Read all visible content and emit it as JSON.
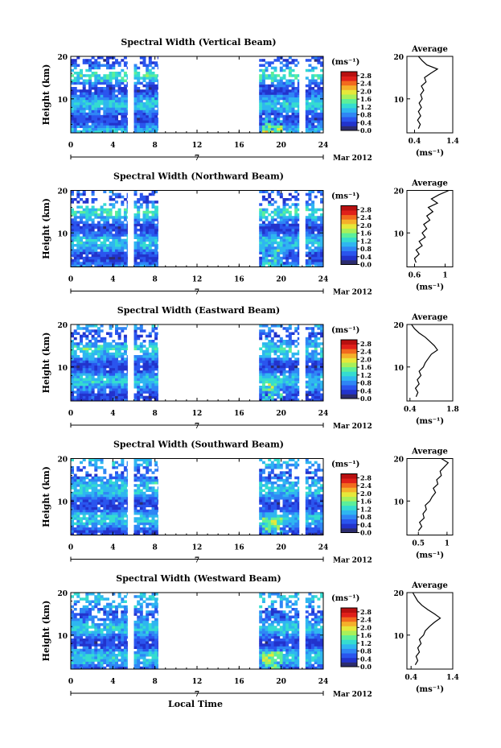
{
  "figure": {
    "x_axis_label": "Local Time",
    "date_label": "Mar 2012",
    "day_marker": "7",
    "unit_label": "(ms⁻¹)",
    "average_title": "Average"
  },
  "chart_data": [
    {
      "type": "heatmap",
      "title": "Spectral Width (Vertical Beam)",
      "xlabel": "",
      "ylabel": "Height (km)",
      "xlim": [
        0,
        24
      ],
      "ylim": [
        2,
        20
      ],
      "xticks": [
        0,
        4,
        8,
        12,
        16,
        20,
        24
      ],
      "yticks": [
        10,
        20
      ],
      "colorbar": {
        "ticks": [
          0.0,
          0.4,
          0.8,
          1.2,
          1.6,
          2.0,
          2.4,
          2.8
        ],
        "range": [
          0,
          3.0
        ]
      },
      "data_intervals_hours": [
        [
          0,
          5.4
        ],
        [
          6.0,
          8.3
        ],
        [
          17.9,
          21.7
        ],
        [
          22.3,
          24
        ]
      ],
      "average_profile": {
        "xlim": [
          0.2,
          1.4
        ],
        "xticks": [
          0.4,
          1.4
        ],
        "yticks": [
          10,
          20
        ],
        "points": [
          [
            0.5,
            3
          ],
          [
            0.55,
            4
          ],
          [
            0.48,
            5
          ],
          [
            0.56,
            6
          ],
          [
            0.5,
            7
          ],
          [
            0.58,
            8
          ],
          [
            0.52,
            9
          ],
          [
            0.6,
            10
          ],
          [
            0.56,
            11
          ],
          [
            0.64,
            12
          ],
          [
            0.58,
            13
          ],
          [
            0.7,
            14
          ],
          [
            0.66,
            15
          ],
          [
            0.82,
            16
          ],
          [
            1.0,
            17
          ],
          [
            0.72,
            18
          ],
          [
            0.6,
            19
          ],
          [
            0.5,
            20
          ]
        ]
      }
    },
    {
      "type": "heatmap",
      "title": "Spectral Width (Northward Beam)",
      "xlabel": "",
      "ylabel": "Height (km)",
      "xlim": [
        0,
        24
      ],
      "ylim": [
        2,
        20
      ],
      "xticks": [
        0,
        4,
        8,
        12,
        16,
        20,
        24
      ],
      "yticks": [
        10,
        20
      ],
      "colorbar": {
        "ticks": [
          0.0,
          0.4,
          0.8,
          1.2,
          1.6,
          2.0,
          2.4,
          2.8
        ],
        "range": [
          0,
          3.0
        ]
      },
      "data_intervals_hours": [
        [
          0,
          5.4
        ],
        [
          6.0,
          8.3
        ],
        [
          17.9,
          21.7
        ],
        [
          22.3,
          24
        ]
      ],
      "average_profile": {
        "xlim": [
          0.5,
          1.1
        ],
        "xticks": [
          0.6,
          1.0
        ],
        "yticks": [
          10,
          20
        ],
        "points": [
          [
            0.62,
            3
          ],
          [
            0.6,
            4
          ],
          [
            0.66,
            5
          ],
          [
            0.62,
            6
          ],
          [
            0.7,
            7
          ],
          [
            0.66,
            8
          ],
          [
            0.74,
            9
          ],
          [
            0.7,
            10
          ],
          [
            0.76,
            11
          ],
          [
            0.72,
            12
          ],
          [
            0.8,
            13
          ],
          [
            0.76,
            14
          ],
          [
            0.84,
            15
          ],
          [
            0.78,
            16
          ],
          [
            0.9,
            17
          ],
          [
            0.82,
            18
          ],
          [
            0.92,
            19
          ],
          [
            1.05,
            20
          ]
        ]
      }
    },
    {
      "type": "heatmap",
      "title": "Spectral Width (Eastward Beam)",
      "xlabel": "",
      "ylabel": "Height (km)",
      "xlim": [
        0,
        24
      ],
      "ylim": [
        2,
        20
      ],
      "xticks": [
        0,
        4,
        8,
        12,
        16,
        20,
        24
      ],
      "yticks": [
        10,
        20
      ],
      "colorbar": {
        "ticks": [
          0.0,
          0.4,
          0.8,
          1.2,
          1.6,
          2.0,
          2.4,
          2.8
        ],
        "range": [
          0,
          3.0
        ]
      },
      "data_intervals_hours": [
        [
          0,
          5.4
        ],
        [
          6.0,
          8.3
        ],
        [
          17.9,
          21.7
        ],
        [
          22.3,
          24
        ]
      ],
      "average_profile": {
        "xlim": [
          0.3,
          1.8
        ],
        "xticks": [
          0.4,
          1.8
        ],
        "yticks": [
          10,
          20
        ],
        "points": [
          [
            0.6,
            3
          ],
          [
            0.66,
            4
          ],
          [
            0.58,
            5
          ],
          [
            0.7,
            6
          ],
          [
            0.64,
            7
          ],
          [
            0.76,
            8
          ],
          [
            0.7,
            9
          ],
          [
            0.84,
            10
          ],
          [
            0.9,
            11
          ],
          [
            1.0,
            12
          ],
          [
            1.1,
            13
          ],
          [
            1.3,
            14
          ],
          [
            1.2,
            15
          ],
          [
            1.05,
            16
          ],
          [
            0.9,
            17
          ],
          [
            0.7,
            18
          ],
          [
            0.55,
            19
          ],
          [
            0.45,
            20
          ]
        ]
      }
    },
    {
      "type": "heatmap",
      "title": "Spectral Width (Southward Beam)",
      "xlabel": "",
      "ylabel": "Height (km)",
      "xlim": [
        0,
        24
      ],
      "ylim": [
        2,
        20
      ],
      "xticks": [
        0,
        4,
        8,
        12,
        16,
        20,
        24
      ],
      "yticks": [
        10,
        20
      ],
      "colorbar": {
        "ticks": [
          0.0,
          0.4,
          0.8,
          1.2,
          1.6,
          2.0,
          2.4,
          2.8
        ],
        "range": [
          0,
          3.0
        ]
      },
      "data_intervals_hours": [
        [
          0,
          5.4
        ],
        [
          6.0,
          8.3
        ],
        [
          17.9,
          21.7
        ],
        [
          22.3,
          24
        ]
      ],
      "average_profile": {
        "xlim": [
          0.3,
          1.1
        ],
        "xticks": [
          0.5,
          1.0
        ],
        "yticks": [
          10,
          20
        ],
        "points": [
          [
            0.5,
            3
          ],
          [
            0.56,
            4
          ],
          [
            0.52,
            5
          ],
          [
            0.6,
            6
          ],
          [
            0.58,
            7
          ],
          [
            0.64,
            8
          ],
          [
            0.62,
            9
          ],
          [
            0.7,
            10
          ],
          [
            0.74,
            11
          ],
          [
            0.8,
            12
          ],
          [
            0.76,
            13
          ],
          [
            0.84,
            14
          ],
          [
            0.82,
            15
          ],
          [
            0.9,
            16
          ],
          [
            0.88,
            17
          ],
          [
            0.95,
            18
          ],
          [
            1.02,
            19
          ],
          [
            0.9,
            20
          ]
        ]
      }
    },
    {
      "type": "heatmap",
      "title": "Spectral Width (Westward Beam)",
      "xlabel": "Local Time",
      "ylabel": "Height (km)",
      "xlim": [
        0,
        24
      ],
      "ylim": [
        2,
        20
      ],
      "xticks": [
        0,
        4,
        8,
        12,
        16,
        20,
        24
      ],
      "yticks": [
        10,
        20
      ],
      "colorbar": {
        "ticks": [
          0.0,
          0.4,
          0.8,
          1.2,
          1.6,
          2.0,
          2.4,
          2.8
        ],
        "range": [
          0,
          3.0
        ]
      },
      "data_intervals_hours": [
        [
          0,
          5.4
        ],
        [
          6.0,
          8.3
        ],
        [
          17.9,
          21.7
        ],
        [
          22.3,
          24
        ]
      ],
      "average_profile": {
        "xlim": [
          0.3,
          1.4
        ],
        "xticks": [
          0.4,
          1.4
        ],
        "yticks": [
          10,
          20
        ],
        "points": [
          [
            0.5,
            3
          ],
          [
            0.56,
            4
          ],
          [
            0.52,
            5
          ],
          [
            0.6,
            6
          ],
          [
            0.56,
            7
          ],
          [
            0.64,
            8
          ],
          [
            0.6,
            9
          ],
          [
            0.7,
            10
          ],
          [
            0.74,
            11
          ],
          [
            0.84,
            12
          ],
          [
            0.96,
            13
          ],
          [
            1.1,
            14
          ],
          [
            0.96,
            15
          ],
          [
            0.8,
            16
          ],
          [
            0.66,
            17
          ],
          [
            0.56,
            18
          ],
          [
            0.5,
            19
          ],
          [
            0.44,
            20
          ]
        ]
      }
    }
  ]
}
